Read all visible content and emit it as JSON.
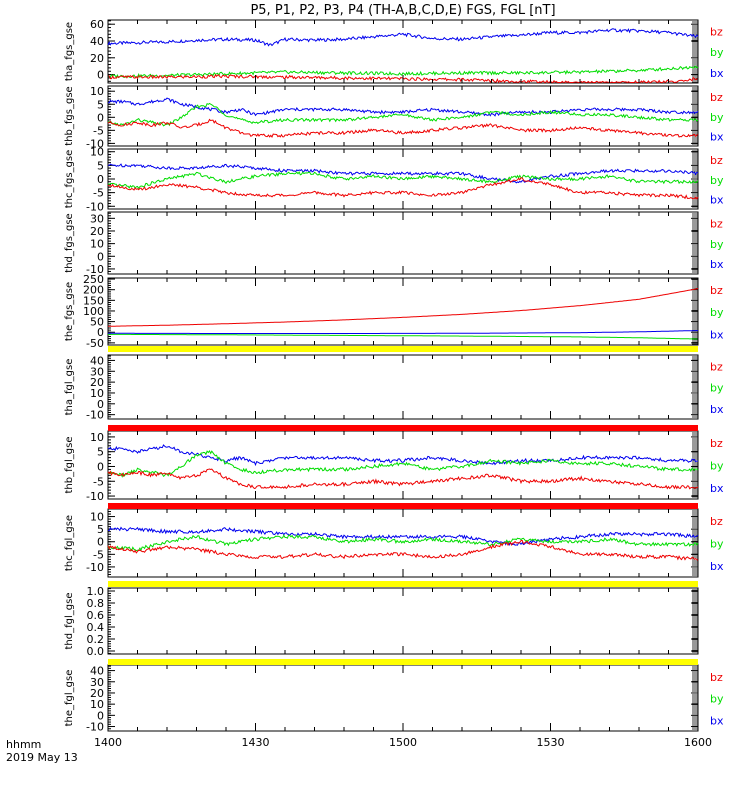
{
  "title": "P5, P1, P2, P3, P4 (TH-A,B,C,D,E) FGS, FGL [nT]",
  "time_axis": {
    "label_line1": "hhmm",
    "label_line2": "2019 May 13",
    "ticks": [
      "1400",
      "1430",
      "1500",
      "1530",
      "1600"
    ]
  },
  "colors": {
    "bx": "#0000ee",
    "by": "#00dd00",
    "bz": "#ee0000",
    "flag_yellow": "#ffff00",
    "flag_red": "#ff0000",
    "axes": "#000000"
  },
  "chart_data": [
    {
      "type": "line",
      "ylabel": "tha_fgs_gse",
      "ylim": [
        -10,
        65
      ],
      "yticks": [
        "60",
        "40",
        "20",
        "0"
      ],
      "ytick_values": [
        60,
        40,
        20,
        0
      ],
      "legend": [
        "bz",
        "by",
        "bx"
      ],
      "series": [
        {
          "name": "bx",
          "x": [
            0,
            10,
            20,
            30,
            40,
            50,
            55,
            60,
            70,
            80,
            90,
            100,
            110,
            120,
            130,
            140,
            150,
            160,
            170,
            180,
            190,
            200,
            205
          ],
          "y": [
            37,
            38,
            39,
            41,
            42,
            41,
            35,
            42,
            41,
            42,
            45,
            48,
            43,
            42,
            45,
            47,
            50,
            50,
            53,
            52,
            50,
            45,
            24
          ]
        },
        {
          "name": "by",
          "x": [
            0,
            20,
            40,
            60,
            80,
            100,
            120,
            140,
            160,
            180,
            195,
            200,
            205
          ],
          "y": [
            -2,
            -1,
            1,
            3,
            2,
            1,
            2,
            2,
            3,
            5,
            8,
            10,
            20
          ]
        },
        {
          "name": "bz",
          "x": [
            0,
            20,
            40,
            60,
            80,
            100,
            120,
            140,
            160,
            180,
            195,
            200,
            205
          ],
          "y": [
            -3,
            -3,
            -2,
            -3,
            -4,
            -5,
            -6,
            -8,
            -10,
            -9,
            -8,
            -4,
            0
          ]
        }
      ]
    },
    {
      "type": "line",
      "ylabel": "thb_fgs_gse",
      "ylim": [
        -11,
        12
      ],
      "yticks": [
        "10",
        "5",
        "0",
        "-5",
        "-10"
      ],
      "ytick_values": [
        10,
        5,
        0,
        -5,
        -10
      ],
      "legend": [
        "bz",
        "by",
        "bx"
      ],
      "series": [
        {
          "name": "bx",
          "x": [
            0,
            5,
            10,
            15,
            20,
            25,
            30,
            35,
            40,
            45,
            50,
            60,
            70,
            80,
            90,
            100,
            110,
            120,
            130,
            140,
            150,
            160,
            170,
            180,
            190,
            200
          ],
          "y": [
            6,
            6,
            5,
            6,
            7,
            5,
            4,
            3,
            2,
            3,
            1,
            3,
            3,
            3,
            2,
            2,
            3,
            2,
            1,
            2,
            2,
            3,
            3,
            3,
            2,
            2
          ]
        },
        {
          "name": "by",
          "x": [
            0,
            5,
            10,
            15,
            20,
            25,
            30,
            35,
            40,
            45,
            50,
            60,
            70,
            80,
            90,
            100,
            110,
            120,
            130,
            140,
            150,
            160,
            170,
            180,
            190,
            200
          ],
          "y": [
            -2,
            -3,
            -1,
            -2,
            -3,
            0,
            4,
            5,
            1,
            -1,
            -2,
            -1,
            -1,
            -1,
            0,
            1,
            -1,
            0,
            2,
            1,
            2,
            1,
            1,
            0,
            -1,
            -1
          ]
        },
        {
          "name": "bz",
          "x": [
            0,
            5,
            10,
            15,
            20,
            25,
            30,
            35,
            40,
            45,
            50,
            60,
            70,
            80,
            90,
            100,
            110,
            120,
            130,
            140,
            150,
            160,
            170,
            180,
            190,
            200
          ],
          "y": [
            -2,
            -3,
            -2,
            -3,
            -2,
            -4,
            -3,
            -1,
            -4,
            -6,
            -7,
            -7,
            -6,
            -6,
            -5,
            -6,
            -5,
            -4,
            -3,
            -5,
            -5,
            -4,
            -5,
            -6,
            -7,
            -7
          ]
        }
      ]
    },
    {
      "type": "line",
      "ylabel": "thc_fgs_gse",
      "ylim": [
        -11,
        11
      ],
      "yticks": [
        "10",
        "5",
        "0",
        "-5",
        "-10"
      ],
      "ytick_values": [
        10,
        5,
        0,
        -5,
        -10
      ],
      "legend": [
        "bz",
        "by",
        "bx"
      ],
      "series": [
        {
          "name": "bx",
          "x": [
            0,
            10,
            20,
            30,
            40,
            50,
            60,
            70,
            80,
            90,
            100,
            110,
            120,
            130,
            140,
            150,
            160,
            170,
            180,
            190,
            200
          ],
          "y": [
            5,
            5,
            4,
            4,
            5,
            4,
            3,
            3,
            2,
            2,
            2,
            2,
            2,
            0,
            -1,
            1,
            2,
            3,
            3,
            3,
            2
          ]
        },
        {
          "name": "by",
          "x": [
            0,
            10,
            20,
            30,
            40,
            50,
            60,
            70,
            80,
            90,
            100,
            110,
            120,
            130,
            140,
            150,
            160,
            170,
            180,
            190,
            200
          ],
          "y": [
            -2,
            -3,
            0,
            2,
            -1,
            1,
            2,
            2,
            0,
            1,
            0,
            1,
            0,
            -1,
            1,
            0,
            0,
            1,
            -1,
            -1,
            -1
          ]
        },
        {
          "name": "bz",
          "x": [
            0,
            10,
            20,
            30,
            40,
            50,
            60,
            70,
            80,
            90,
            100,
            110,
            120,
            130,
            140,
            150,
            160,
            170,
            180,
            190,
            200
          ],
          "y": [
            -2,
            -4,
            -2,
            -3,
            -5,
            -6,
            -6,
            -5,
            -6,
            -5,
            -5,
            -6,
            -5,
            -2,
            0,
            -2,
            -5,
            -5,
            -6,
            -6,
            -7
          ]
        }
      ]
    },
    {
      "type": "line",
      "ylabel": "thd_fgs_gse",
      "ylim": [
        -14,
        35
      ],
      "yticks": [
        "30",
        "20",
        "10",
        "0",
        "-10"
      ],
      "ytick_values": [
        30,
        20,
        10,
        0,
        -10
      ],
      "legend": [
        "bz",
        "by",
        "bx"
      ],
      "series": []
    },
    {
      "type": "line",
      "ylabel": "the_fgs_gse",
      "ylim": [
        -60,
        255
      ],
      "yticks": [
        "250",
        "200",
        "150",
        "100",
        "50",
        "0",
        "-50"
      ],
      "ytick_values": [
        250,
        200,
        150,
        100,
        50,
        0,
        -50
      ],
      "legend": [
        "bz",
        "by",
        "bx"
      ],
      "series": [
        {
          "name": "bz",
          "x": [
            0,
            20,
            40,
            60,
            80,
            100,
            120,
            140,
            160,
            180,
            190,
            200
          ],
          "y": [
            28,
            33,
            40,
            48,
            58,
            70,
            84,
            102,
            125,
            155,
            180,
            205
          ]
        },
        {
          "name": "by",
          "x": [
            0,
            40,
            80,
            120,
            160,
            180,
            200
          ],
          "y": [
            -10,
            -12,
            -15,
            -18,
            -22,
            -26,
            -32
          ]
        },
        {
          "name": "bx",
          "x": [
            0,
            40,
            80,
            120,
            160,
            180,
            200
          ],
          "y": [
            -5,
            -6,
            -6,
            -5,
            -2,
            2,
            8
          ]
        }
      ]
    },
    {
      "type": "line",
      "ylabel": "tha_fgl_gse",
      "ylim": [
        -14,
        45
      ],
      "yticks": [
        "40",
        "30",
        "20",
        "10",
        "0",
        "-10"
      ],
      "ytick_values": [
        40,
        30,
        20,
        10,
        0,
        -10
      ],
      "legend": [
        "bz",
        "by",
        "bx"
      ],
      "series": []
    },
    {
      "type": "line",
      "ylabel": "thb_fgl_gse",
      "ylim": [
        -11,
        12
      ],
      "yticks": [
        "10",
        "5",
        "0",
        "-5",
        "-10"
      ],
      "ytick_values": [
        10,
        5,
        0,
        -5,
        -10
      ],
      "legend": [
        "bz",
        "by",
        "bx"
      ],
      "series": [
        {
          "name": "bx",
          "x": [
            0,
            5,
            10,
            15,
            20,
            25,
            30,
            35,
            40,
            45,
            50,
            60,
            70,
            80,
            90,
            100,
            110,
            120,
            130,
            140,
            150,
            160,
            170,
            180,
            190,
            200
          ],
          "y": [
            6,
            6,
            5,
            6,
            7,
            5,
            4,
            3,
            2,
            3,
            1,
            3,
            3,
            3,
            2,
            2,
            3,
            2,
            1,
            2,
            2,
            3,
            3,
            3,
            2,
            2
          ]
        },
        {
          "name": "by",
          "x": [
            0,
            5,
            10,
            15,
            20,
            25,
            30,
            35,
            40,
            45,
            50,
            60,
            70,
            80,
            90,
            100,
            110,
            120,
            130,
            140,
            150,
            160,
            170,
            180,
            190,
            200
          ],
          "y": [
            -2,
            -3,
            -1,
            -2,
            -3,
            0,
            4,
            5,
            1,
            -1,
            -2,
            -1,
            -1,
            -1,
            0,
            1,
            -1,
            0,
            2,
            1,
            2,
            1,
            1,
            0,
            -1,
            -1
          ]
        },
        {
          "name": "bz",
          "x": [
            0,
            5,
            10,
            15,
            20,
            25,
            30,
            35,
            40,
            45,
            50,
            60,
            70,
            80,
            90,
            100,
            110,
            120,
            130,
            140,
            150,
            160,
            170,
            180,
            190,
            200
          ],
          "y": [
            -2,
            -3,
            -2,
            -3,
            -2,
            -4,
            -3,
            -1,
            -4,
            -6,
            -7,
            -7,
            -6,
            -6,
            -5,
            -6,
            -5,
            -4,
            -3,
            -5,
            -5,
            -4,
            -5,
            -6,
            -7,
            -7
          ]
        }
      ]
    },
    {
      "type": "line",
      "ylabel": "thc_fgl_gse",
      "ylim": [
        -14,
        13
      ],
      "yticks": [
        "10",
        "5",
        "0",
        "-5",
        "-10"
      ],
      "ytick_values": [
        10,
        5,
        0,
        -5,
        -10
      ],
      "legend": [
        "bz",
        "by",
        "bx"
      ],
      "series": [
        {
          "name": "bx",
          "x": [
            0,
            10,
            20,
            30,
            40,
            50,
            60,
            70,
            80,
            90,
            100,
            110,
            120,
            130,
            140,
            150,
            160,
            170,
            180,
            190,
            200
          ],
          "y": [
            5,
            5,
            4,
            4,
            5,
            4,
            3,
            3,
            2,
            2,
            2,
            2,
            2,
            0,
            -1,
            1,
            2,
            3,
            3,
            3,
            2
          ]
        },
        {
          "name": "by",
          "x": [
            0,
            10,
            20,
            30,
            40,
            50,
            60,
            70,
            80,
            90,
            100,
            110,
            120,
            130,
            140,
            150,
            160,
            170,
            180,
            190,
            200
          ],
          "y": [
            -2,
            -3,
            0,
            2,
            -1,
            1,
            2,
            2,
            0,
            1,
            0,
            1,
            0,
            -1,
            1,
            0,
            0,
            1,
            -1,
            -1,
            -1
          ]
        },
        {
          "name": "bz",
          "x": [
            0,
            10,
            20,
            30,
            40,
            50,
            60,
            70,
            80,
            90,
            100,
            110,
            120,
            130,
            140,
            150,
            160,
            170,
            180,
            190,
            200
          ],
          "y": [
            -2,
            -4,
            -2,
            -3,
            -5,
            -6,
            -6,
            -5,
            -6,
            -5,
            -5,
            -6,
            -5,
            -2,
            0,
            -2,
            -5,
            -5,
            -6,
            -6,
            -7
          ]
        }
      ]
    },
    {
      "type": "line",
      "ylabel": "thd_fgl_gse",
      "ylim": [
        -0.05,
        1.05
      ],
      "yticks": [
        "1.0",
        "0.8",
        "0.6",
        "0.4",
        "0.2",
        "0.0"
      ],
      "ytick_values": [
        1.0,
        0.8,
        0.6,
        0.4,
        0.2,
        0.0
      ],
      "legend": [],
      "series": []
    },
    {
      "type": "line",
      "ylabel": "the_fgl_gse",
      "ylim": [
        -14,
        45
      ],
      "yticks": [
        "40",
        "30",
        "20",
        "10",
        "0",
        "-10"
      ],
      "ytick_values": [
        40,
        30,
        20,
        10,
        0,
        -10
      ],
      "legend": [
        "bz",
        "by",
        "bx"
      ],
      "series": []
    }
  ],
  "flag_bars": [
    {
      "panel_above": 4,
      "color": "yellow"
    },
    {
      "panel_above": 5,
      "color": "red"
    },
    {
      "panel_above": 6,
      "color": "red"
    },
    {
      "panel_above": 7,
      "color": "yellow"
    },
    {
      "panel_above": 8,
      "color": "yellow"
    }
  ]
}
